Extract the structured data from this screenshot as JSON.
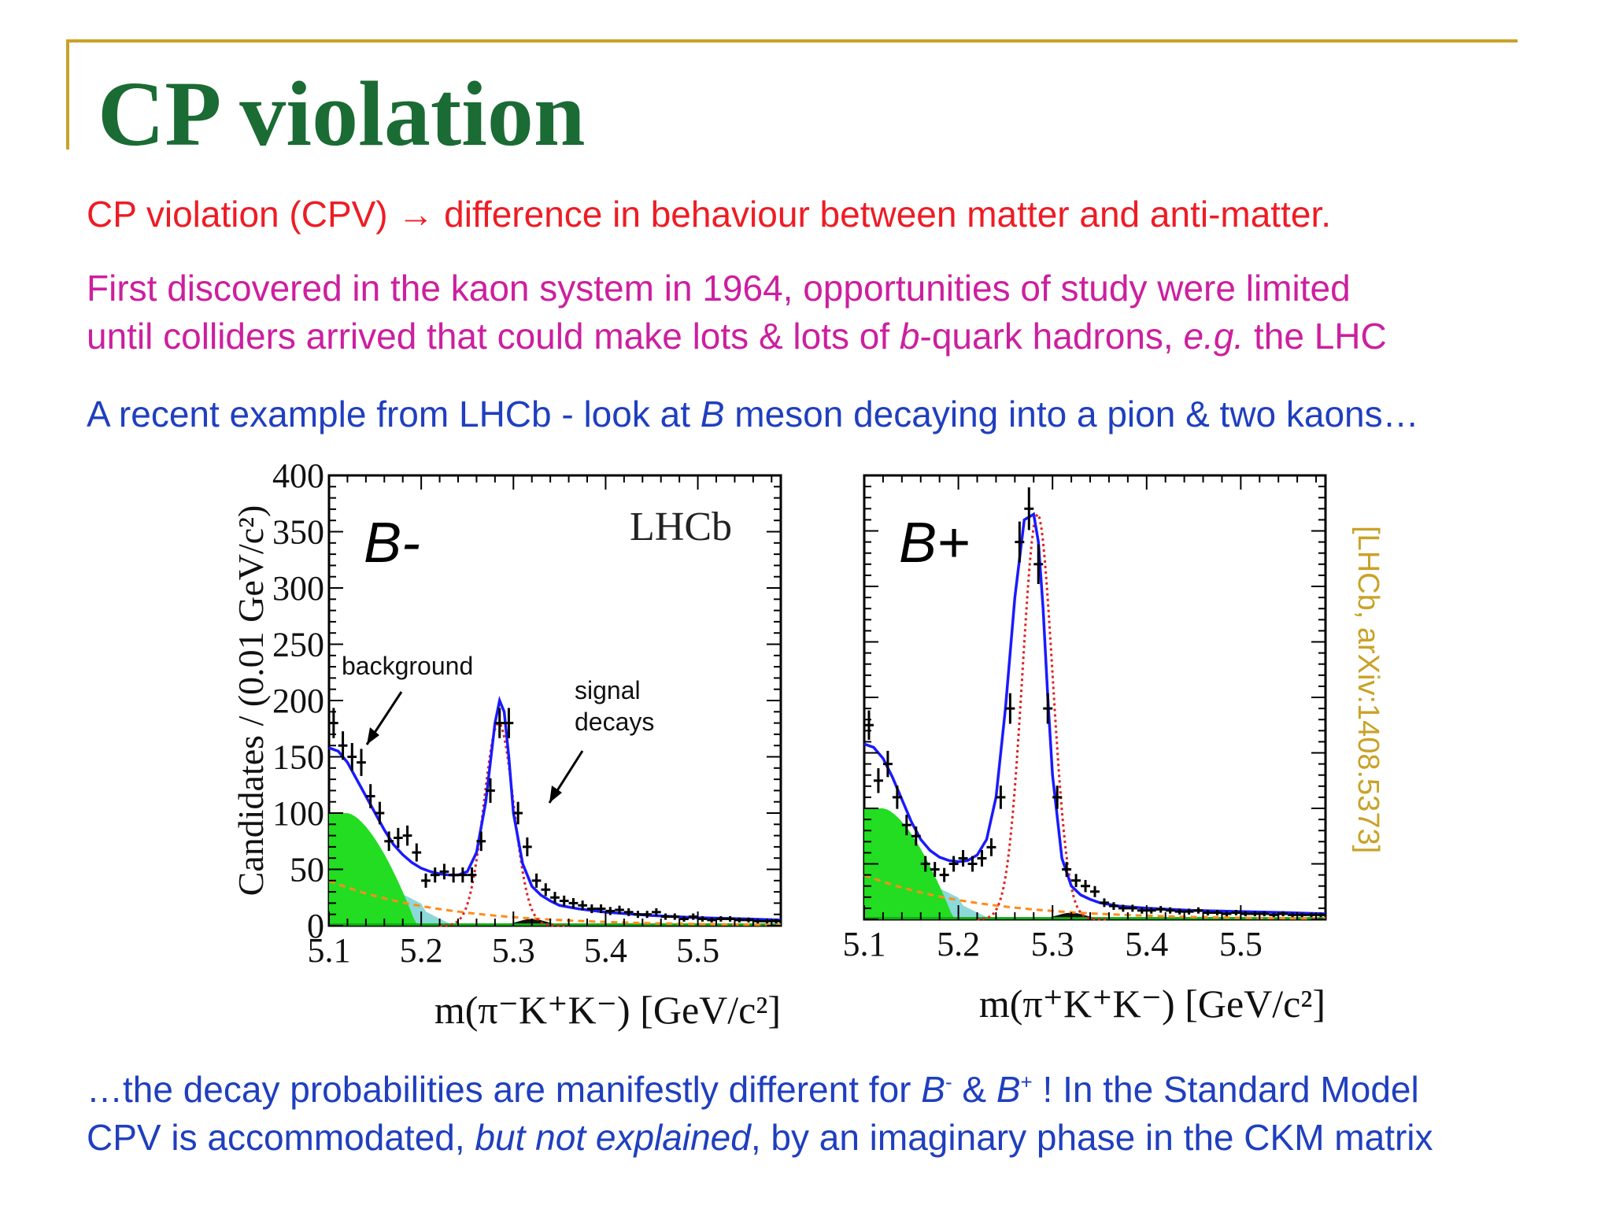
{
  "slide": {
    "title": "CP violation",
    "line1": "CP violation (CPV) → difference in behaviour between matter and anti-matter.",
    "line2a": "First discovered in the kaon system in 1964, opportunities of study were limited",
    "line2b_pre": "until colliders arrived that could make lots & lots of ",
    "line2b_b": "b",
    "line2b_mid": "-quark hadrons, ",
    "line2b_eg": "e.g.",
    "line2b_post": " the LHC",
    "line3_pre": "A recent example from LHCb - look at ",
    "line3_B": "B",
    "line3_post": " meson decaying into a pion & two kaons…",
    "bottom1_pre": "…the decay probabilities are manifestly different for ",
    "bottom1_B1": "B",
    "bottom1_sup1": "-",
    "bottom1_amp": " & ",
    "bottom1_B2": "B",
    "bottom1_sup2": "+",
    "bottom1_post": " ! In the Standard Model",
    "bottom2_pre": "CPV is accommodated, ",
    "bottom2_it": "but not explained",
    "bottom2_post": ", by an imaginary phase in the CKM matrix",
    "citation": "[LHCb, arXiv:1408.5373]"
  },
  "colors": {
    "title": "#1b6b34",
    "red": "#ee1c24",
    "magenta": "#cc1f9f",
    "blue": "#1f3fbf",
    "gold": "#c9a227",
    "fit": "#1a1aff",
    "signal": "#e02020",
    "combinatorial": "#ff8c1a",
    "green_bg": "#22dd22",
    "cyan_bg": "#66cccc"
  },
  "chart_data": [
    {
      "type": "scatter",
      "panel_label": "B-",
      "experiment_label": "LHCb",
      "ylabel": "Candidates / (0.01 GeV/c²)",
      "xlabel": "m(π⁻K⁺K⁻) [GeV/c²]",
      "x_ticks": [
        "5.1",
        "5.2",
        "5.3",
        "5.4",
        "5.5"
      ],
      "y_ticks": [
        "0",
        "50",
        "100",
        "150",
        "200",
        "250",
        "300",
        "350",
        "400"
      ],
      "xlim": [
        5.1,
        5.59
      ],
      "ylim": [
        0,
        400
      ],
      "annotations": [
        "background",
        "signal",
        "decays"
      ],
      "points": {
        "x": [
          5.105,
          5.115,
          5.125,
          5.135,
          5.145,
          5.155,
          5.165,
          5.175,
          5.185,
          5.195,
          5.205,
          5.215,
          5.225,
          5.235,
          5.245,
          5.255,
          5.265,
          5.275,
          5.285,
          5.295,
          5.305,
          5.315,
          5.325,
          5.335,
          5.345,
          5.355,
          5.365,
          5.375,
          5.385,
          5.395,
          5.405,
          5.415,
          5.425,
          5.435,
          5.445,
          5.455,
          5.465,
          5.475,
          5.485,
          5.495,
          5.505,
          5.515,
          5.525,
          5.535,
          5.545,
          5.555,
          5.565,
          5.575,
          5.585
        ],
        "y": [
          180,
          160,
          150,
          145,
          115,
          100,
          75,
          78,
          80,
          65,
          40,
          45,
          48,
          45,
          45,
          45,
          75,
          120,
          180,
          180,
          100,
          70,
          40,
          32,
          25,
          22,
          20,
          18,
          15,
          15,
          13,
          14,
          12,
          10,
          10,
          12,
          8,
          8,
          6,
          8,
          6,
          5,
          6,
          6,
          5,
          5,
          4,
          4,
          4
        ]
      },
      "fit_total": {
        "x": [
          5.1,
          5.11,
          5.12,
          5.13,
          5.14,
          5.15,
          5.16,
          5.17,
          5.18,
          5.19,
          5.2,
          5.21,
          5.22,
          5.23,
          5.24,
          5.25,
          5.26,
          5.27,
          5.28,
          5.285,
          5.29,
          5.295,
          5.3,
          5.31,
          5.32,
          5.33,
          5.34,
          5.35,
          5.37,
          5.4,
          5.45,
          5.5,
          5.55,
          5.59
        ],
        "y": [
          158,
          155,
          145,
          130,
          115,
          100,
          85,
          72,
          63,
          56,
          51,
          48,
          46,
          45,
          45,
          48,
          65,
          110,
          180,
          200,
          190,
          150,
          100,
          55,
          35,
          27,
          22,
          18,
          15,
          12,
          9,
          7,
          6,
          5
        ]
      },
      "components": {
        "signal_peak": 180,
        "green_peak": 100,
        "cyan_level": 25,
        "combinatorial_start": 40
      }
    },
    {
      "type": "scatter",
      "panel_label": "B+",
      "ylabel": "",
      "xlabel": "m(π⁺K⁺K⁻) [GeV/c²]",
      "x_ticks": [
        "5.1",
        "5.2",
        "5.3",
        "5.4",
        "5.5"
      ],
      "xlim": [
        5.1,
        5.59
      ],
      "ylim": [
        0,
        400
      ],
      "points": {
        "x": [
          5.105,
          5.115,
          5.125,
          5.135,
          5.145,
          5.155,
          5.165,
          5.175,
          5.185,
          5.195,
          5.205,
          5.215,
          5.225,
          5.235,
          5.245,
          5.255,
          5.265,
          5.275,
          5.285,
          5.295,
          5.305,
          5.315,
          5.325,
          5.335,
          5.345,
          5.355,
          5.365,
          5.375,
          5.385,
          5.395,
          5.405,
          5.415,
          5.425,
          5.435,
          5.445,
          5.455,
          5.465,
          5.475,
          5.485,
          5.495,
          5.505,
          5.515,
          5.525,
          5.535,
          5.545,
          5.555,
          5.565,
          5.575,
          5.585
        ],
        "y": [
          175,
          125,
          140,
          110,
          85,
          75,
          50,
          45,
          40,
          50,
          55,
          50,
          55,
          65,
          110,
          190,
          340,
          370,
          320,
          190,
          110,
          45,
          35,
          30,
          25,
          15,
          12,
          10,
          10,
          8,
          8,
          9,
          8,
          7,
          7,
          8,
          6,
          6,
          5,
          6,
          5,
          5,
          5,
          4,
          5,
          4,
          4,
          4,
          4
        ]
      },
      "fit_total": {
        "x": [
          5.1,
          5.11,
          5.12,
          5.13,
          5.14,
          5.15,
          5.16,
          5.17,
          5.18,
          5.19,
          5.2,
          5.21,
          5.22,
          5.23,
          5.24,
          5.25,
          5.26,
          5.27,
          5.28,
          5.285,
          5.29,
          5.295,
          5.3,
          5.31,
          5.32,
          5.33,
          5.34,
          5.35,
          5.37,
          5.4,
          5.45,
          5.5,
          5.55,
          5.59
        ],
        "y": [
          158,
          155,
          145,
          128,
          108,
          88,
          72,
          62,
          56,
          53,
          52,
          53,
          58,
          72,
          110,
          190,
          290,
          360,
          365,
          340,
          280,
          200,
          130,
          55,
          30,
          22,
          18,
          15,
          12,
          10,
          8,
          7,
          6,
          5
        ]
      },
      "components": {
        "signal_peak": 365,
        "green_peak": 100,
        "cyan_level": 25,
        "combinatorial_start": 40
      }
    }
  ]
}
